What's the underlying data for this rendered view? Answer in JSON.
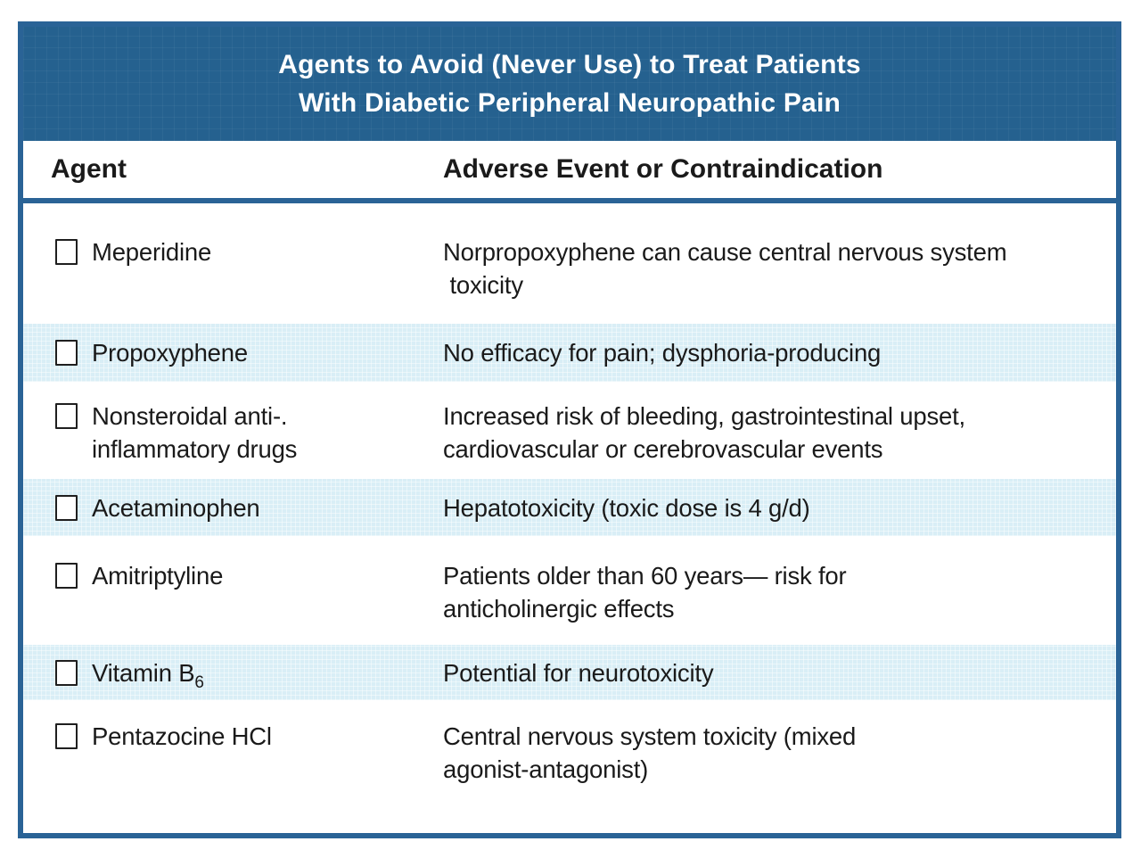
{
  "table": {
    "title": "Agents to Avoid (Never Use) to Treat Patients\nWith Diabetic Peripheral Neuropathic Pain",
    "columns": {
      "agent": "Agent",
      "adverse": "Adverse Event or Contraindication"
    },
    "rows": [
      {
        "agent": "Meperidine",
        "adverse": "Norpropoxyphene can cause central nervous system\n toxicity",
        "checked": false
      },
      {
        "agent": "Propoxyphene",
        "adverse": "No efficacy for pain; dysphoria-producing",
        "checked": false
      },
      {
        "agent": "Nonsteroidal anti-.\ninflammatory drugs",
        "adverse": "Increased risk of bleeding, gastrointestinal upset,\ncardiovascular or cerebrovascular events",
        "checked": false
      },
      {
        "agent": "Acetaminophen",
        "adverse": "Hepatotoxicity (toxic dose is 4 g/d)",
        "checked": false
      },
      {
        "agent": "Amitriptyline",
        "adverse": "Patients older than 60 years— risk for\nanticholinergic effects",
        "checked": false
      },
      {
        "agent": "Vitamin B",
        "agent_sub": "6",
        "adverse": "Potential for neurotoxicity",
        "checked": false
      },
      {
        "agent": "Pentazocine HCl",
        "adverse": "Central nervous system toxicity (mixed\nagonist-antagonist)",
        "checked": false
      }
    ],
    "colors": {
      "header_bg": "#25618f",
      "border": "#2a6396",
      "stripe": "#d9eef6",
      "text": "#1a1a1a",
      "title_text": "#ffffff"
    }
  }
}
